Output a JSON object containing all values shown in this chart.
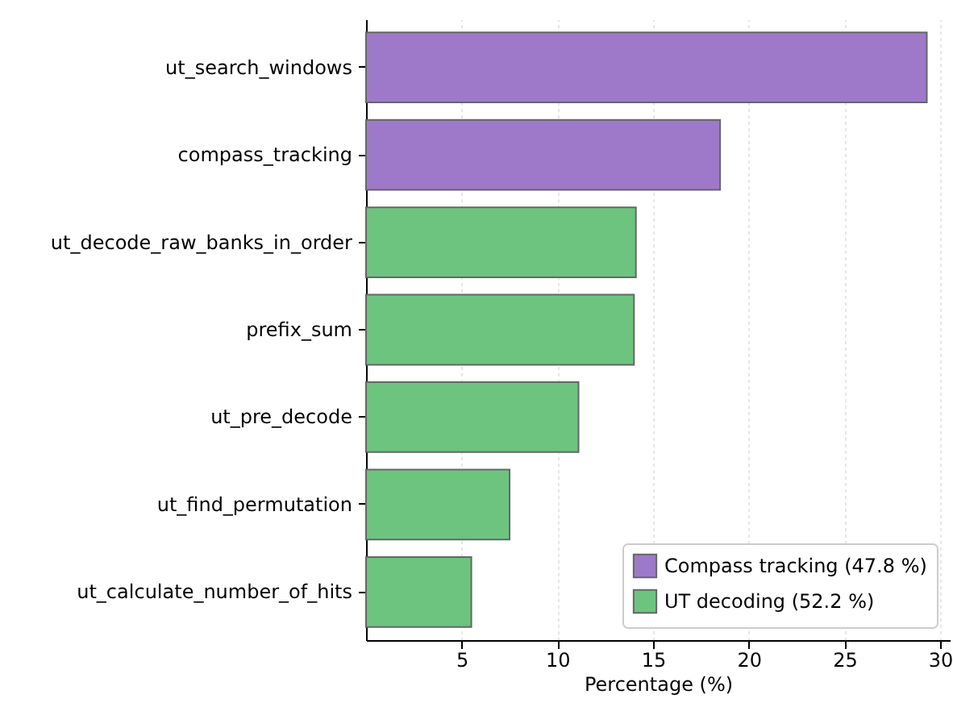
{
  "chart_data": {
    "type": "bar",
    "orientation": "horizontal",
    "xlabel": "Percentage (%)",
    "categories": [
      "ut_search_windows",
      "compass_tracking",
      "ut_decode_raw_banks_in_order",
      "prefix_sum",
      "ut_pre_decode",
      "ut_find_permutation",
      "ut_calculate_number_of_hits"
    ],
    "series": [
      {
        "name": "Compass tracking (47.8 %)",
        "color": "#9f79c9",
        "values": [
          29.3,
          18.5,
          null,
          null,
          null,
          null,
          null
        ]
      },
      {
        "name": "UT decoding (52.2 %)",
        "color": "#6cc47f",
        "values": [
          null,
          null,
          14.1,
          14.0,
          11.1,
          7.5,
          5.5
        ]
      }
    ],
    "xlim": [
      0,
      30.5
    ],
    "xticks": [
      5,
      10,
      15,
      20,
      25,
      30
    ],
    "grid": "x",
    "legend": "bottom right"
  }
}
